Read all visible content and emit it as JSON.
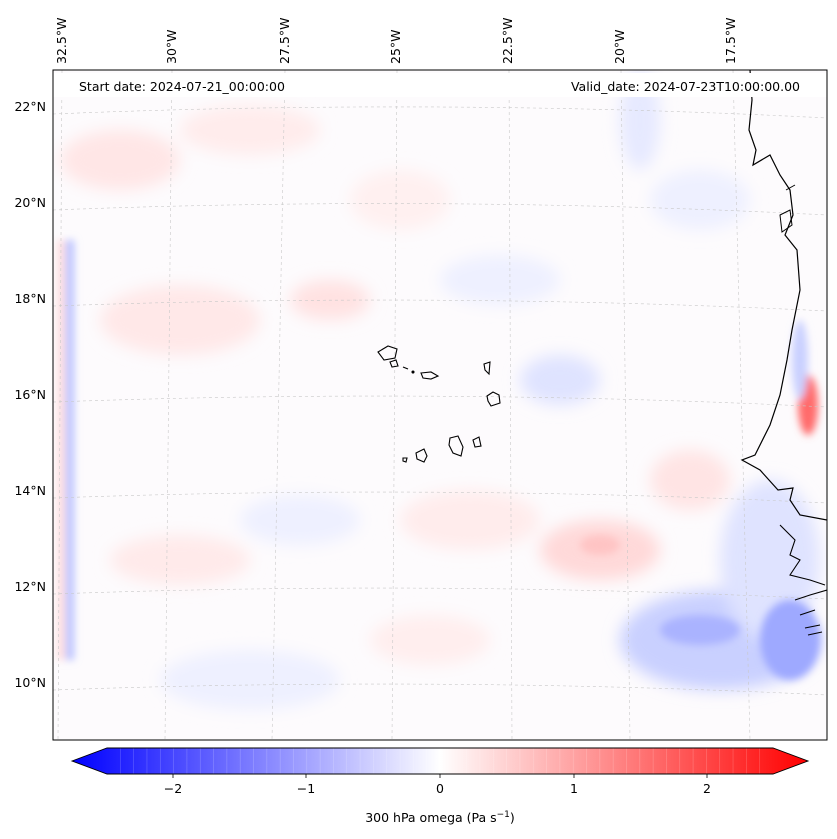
{
  "map": {
    "start_label": "Start date: 2024-07-21_00:00:00",
    "valid_label": "Valid_date: 2024-07-23T10:00:00.00",
    "lat_labels": [
      "22°N",
      "20°N",
      "18°N",
      "16°N",
      "14°N",
      "12°N",
      "10°N"
    ],
    "lon_labels": [
      "32.5°W",
      "30°W",
      "27.5°W",
      "25°W",
      "22.5°W",
      "20°W",
      "17.5°W"
    ],
    "islands_name": "Cape Verde islands",
    "coast_name": "West African coastline"
  },
  "colorbar": {
    "ticks": [
      "−2",
      "−1",
      "0",
      "1",
      "2"
    ],
    "label": "300 hPa omega (Pa s",
    "label_exp": "−1",
    "label_close": ")",
    "min": -2.6,
    "max": 2.6,
    "colors": {
      "low": "#0000ff",
      "mid": "#ffffff",
      "high": "#ff0000"
    }
  }
}
